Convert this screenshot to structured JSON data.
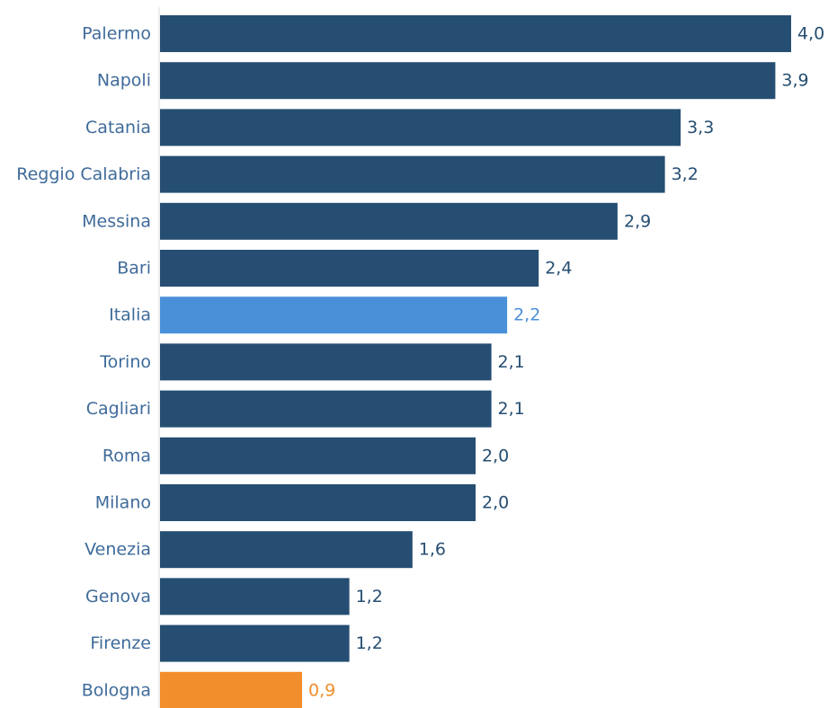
{
  "chart_data": {
    "type": "bar",
    "orientation": "horizontal",
    "categories": [
      "Palermo",
      "Napoli",
      "Catania",
      "Reggio Calabria",
      "Messina",
      "Bari",
      "Italia",
      "Torino",
      "Cagliari",
      "Roma",
      "Milano",
      "Venezia",
      "Genova",
      "Firenze",
      "Bologna"
    ],
    "values": [
      4.0,
      3.9,
      3.3,
      3.2,
      2.9,
      2.4,
      2.2,
      2.1,
      2.1,
      2.0,
      2.0,
      1.6,
      1.2,
      1.2,
      0.9
    ],
    "value_labels": [
      "4,0",
      "3,9",
      "3,3",
      "3,2",
      "2,9",
      "2,4",
      "2,2",
      "2,1",
      "2,1",
      "2,0",
      "2,0",
      "1,6",
      "1,2",
      "1,2",
      "0,9"
    ],
    "xlim": [
      0,
      4.0
    ],
    "grid": false,
    "legend": "none",
    "colors": {
      "default_bar": "#264E72",
      "highlight_italia": "#4A90D9",
      "highlight_bologna": "#F28E2B",
      "category_label": "#3F6B9A",
      "axis_line": "#DDDDDD"
    },
    "highlights": {
      "Italia": "highlight_italia",
      "Bologna": "highlight_bologna"
    }
  }
}
